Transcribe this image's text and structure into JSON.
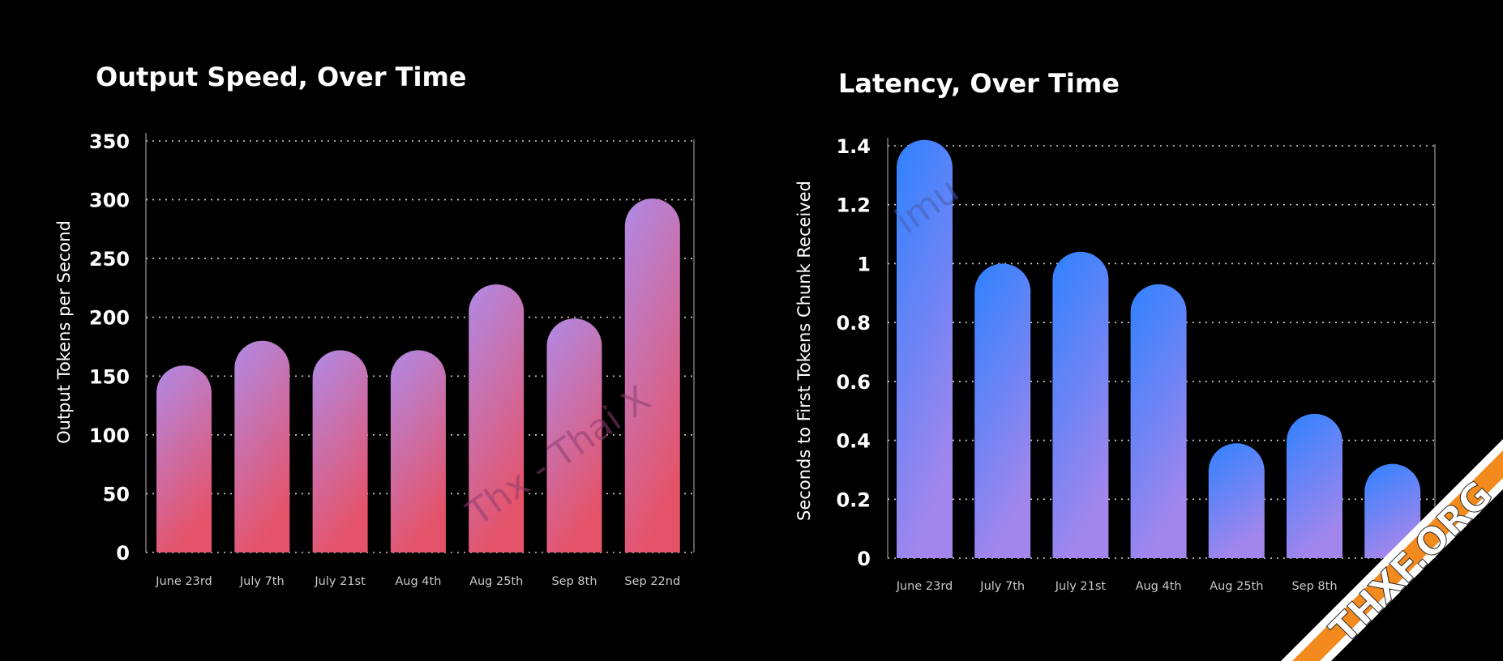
{
  "chart_data": [
    {
      "type": "bar",
      "title": "Output Speed, Over Time",
      "ylabel": "Output Tokens per Second",
      "xlabel": "",
      "categories": [
        "June 23rd",
        "July 7th",
        "July 21st",
        "Aug 4th",
        "Aug 25th",
        "Sep 8th",
        "Sep 22nd"
      ],
      "values": [
        159,
        180,
        172,
        172,
        228,
        199,
        301
      ],
      "ylim": [
        0,
        350
      ],
      "yticks": [
        "0",
        "50",
        "100",
        "150",
        "200",
        "250",
        "300",
        "350"
      ],
      "grid": true,
      "colors": {
        "top": "#b08ae6",
        "bottom": "#e5536a"
      }
    },
    {
      "type": "bar",
      "title": "Latency, Over Time",
      "ylabel": "Seconds to First Tokens Chunk Received",
      "xlabel": "",
      "categories": [
        "June 23rd",
        "July 7th",
        "July 21st",
        "Aug 4th",
        "Aug 25th",
        "Sep 8th",
        ""
      ],
      "values": [
        1.42,
        1.0,
        1.04,
        0.93,
        0.39,
        0.49,
        0.32
      ],
      "ylim": [
        0,
        1.4
      ],
      "yticks": [
        "0",
        "0.2",
        "0.4",
        "0.6",
        "0.8",
        "1",
        "1.2",
        "1.4"
      ],
      "grid": true,
      "colors": {
        "top": "#2f82ff",
        "bottom": "#a386ec"
      }
    }
  ],
  "watermark": {
    "text_left": "Thx - Thai X",
    "text_right": "imu"
  },
  "badge": {
    "text": "THXF.ORG",
    "color": "#f28a1e"
  }
}
